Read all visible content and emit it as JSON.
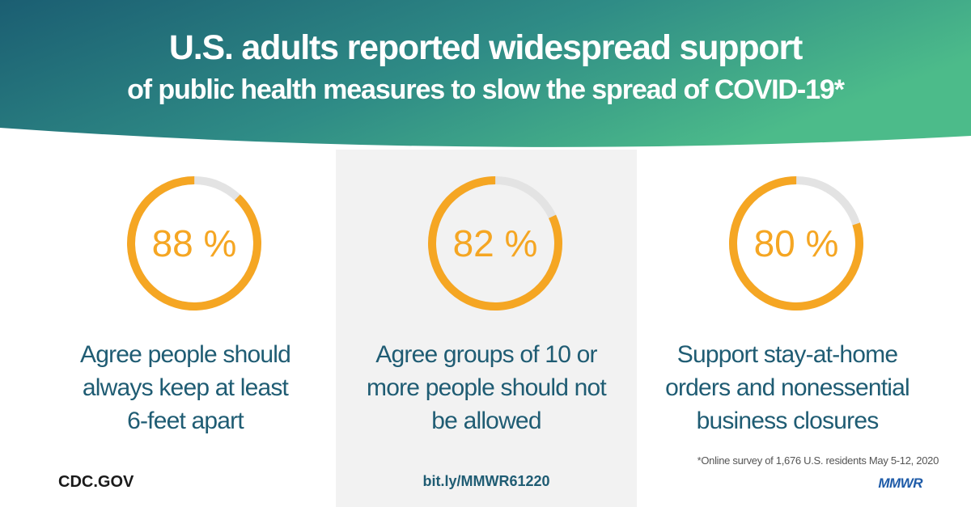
{
  "header": {
    "title_line1": "U.S. adults reported widespread support",
    "title_line2": "of public health measures to slow the spread of COVID-19*",
    "gradient_start": "#1b5e72",
    "gradient_end": "#4cbb8a"
  },
  "stats": [
    {
      "value": 88,
      "label": "88 %",
      "description_lines": [
        "Agree people should",
        "always keep at least",
        "6-feet apart"
      ]
    },
    {
      "value": 82,
      "label": "82 %",
      "description_lines": [
        "Agree groups of 10 or",
        "more people should not",
        "be allowed"
      ]
    },
    {
      "value": 80,
      "label": "80 %",
      "description_lines": [
        "Support stay-at-home",
        "orders and nonessential",
        "business closures"
      ]
    }
  ],
  "colors": {
    "ring_fill": "#f5a623",
    "ring_track": "#e3e3e3",
    "description_text": "#1f5c73",
    "middle_panel": "#f2f2f2"
  },
  "footer": {
    "site": "CDC.GOV",
    "short_link": "bit.ly/MMWR61220",
    "footnote": "*Online survey of 1,676 U.S. residents May 5-12, 2020",
    "logo_text": "MMWR"
  }
}
